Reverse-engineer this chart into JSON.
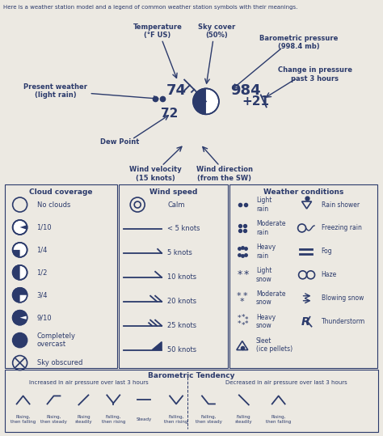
{
  "title": "Here is a weather station model and a legend of common weather station symbols with their meanings.",
  "bg_color": "#ece9e2",
  "text_color": "#2b3a6b",
  "box_color": "#2b3a6b",
  "top": {
    "temp_label": "Temperature\n(°F US)",
    "sky_label": "Sky cover\n(50%)",
    "baro_label": "Barometric pressure\n(998.4 mb)",
    "change_label": "Change in pressure\npast 3 hours",
    "present_label": "Present weather\n(light rain)",
    "dew_label": "Dew Point",
    "wind_vel_label": "Wind velocity\n(15 knots)",
    "wind_dir_label": "Wind direction\n(from the SW)",
    "temp_val": "74",
    "dew_val": "72",
    "baro_val": "984",
    "change_val": "+21"
  },
  "cloud_items": [
    "No clouds",
    "1/10",
    "1/4",
    "1/2",
    "3/4",
    "9/10",
    "Completely\novercast",
    "Sky obscured"
  ],
  "wind_items": [
    "Calm",
    "< 5 knots",
    "5 knots",
    "10 knots",
    "20 knots",
    "25 knots",
    "50 knots"
  ],
  "wc_left": [
    "Light\nrain",
    "Moderate\nrain",
    "Heavy\nrain",
    "Light\nsnow",
    "Moderate\nsnow",
    "Heavy\nsnow",
    "Sleet\n(ice pellets)"
  ],
  "wc_right": [
    "Rain shower",
    "Freezing rain",
    "Fog",
    "Haze",
    "Blowing snow",
    "Thunderstorm"
  ],
  "baro_title": "Barometric Tendency",
  "baro_increased": "Increased in air pressure over last 3 hours",
  "baro_decreased": "Decreased in air pressure over last 3 hours",
  "baro_labels": [
    "Rising,\nthen falling",
    "Rising,\nthen steady",
    "Rising\nsteadily",
    "Falling,\nthen rising",
    "Steady",
    "Falling,\nthen rising",
    "Falling,\nthen steady",
    "Falling\nsteadily",
    "Rising,\nthen falling"
  ]
}
